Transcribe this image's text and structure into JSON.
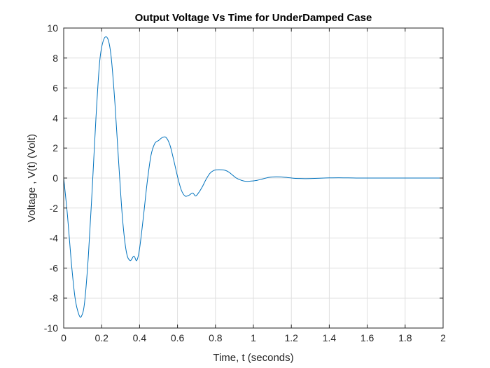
{
  "chart_data": {
    "type": "line",
    "title": "Output Voltage Vs Time for UnderDamped Case",
    "xlabel": "Time, t (seconds)",
    "ylabel": "Voltage , V(t) (Volt)",
    "xlim": [
      0,
      2
    ],
    "ylim": [
      -10,
      10
    ],
    "xticks": [
      0,
      0.2,
      0.4,
      0.6,
      0.8,
      1,
      1.2,
      1.4,
      1.6,
      1.8,
      2
    ],
    "xtick_labels": [
      "0",
      "0.2",
      "0.4",
      "0.6",
      "0.8",
      "1",
      "1.2",
      "1.4",
      "1.6",
      "1.8",
      "2"
    ],
    "yticks": [
      -10,
      -8,
      -6,
      -4,
      -2,
      0,
      2,
      4,
      6,
      8,
      10
    ],
    "ytick_labels": [
      "-10",
      "-8",
      "-6",
      "-4",
      "-2",
      "0",
      "2",
      "4",
      "6",
      "8",
      "10"
    ],
    "grid": true,
    "color": "#0072BD",
    "series": [
      {
        "x": [
          0,
          0.02,
          0.04,
          0.06,
          0.08,
          0.094,
          0.11,
          0.13,
          0.15,
          0.17,
          0.19,
          0.21,
          0.232,
          0.25,
          0.27,
          0.29,
          0.31,
          0.33,
          0.35,
          0.37,
          0.385,
          0.4,
          0.42,
          0.44,
          0.46,
          0.48,
          0.5,
          0.52,
          0.54,
          0.56,
          0.58,
          0.6,
          0.62,
          0.64,
          0.66,
          0.68,
          0.695,
          0.71,
          0.73,
          0.75,
          0.77,
          0.79,
          0.81,
          0.83,
          0.85,
          0.87,
          0.89,
          0.91,
          0.93,
          0.95,
          0.97,
          0.99,
          1.005,
          1.02,
          1.04,
          1.06,
          1.08,
          1.1,
          1.12,
          1.15,
          1.18,
          1.21,
          1.24,
          1.27,
          1.31,
          1.35,
          1.4,
          1.45,
          1.5,
          1.55,
          1.6,
          1.7,
          1.8,
          1.9,
          2.0
        ],
        "y": [
          0,
          -2.5,
          -5.6,
          -8.0,
          -9.1,
          -9.2,
          -8.3,
          -5.2,
          -0.8,
          4.0,
          7.8,
          9.2,
          9.3,
          8.1,
          5.0,
          1.0,
          -2.7,
          -4.9,
          -5.5,
          -5.2,
          -5.5,
          -4.7,
          -2.6,
          -0.3,
          1.5,
          2.3,
          2.5,
          2.7,
          2.7,
          2.2,
          1.2,
          0.1,
          -0.8,
          -1.2,
          -1.15,
          -1.0,
          -1.2,
          -1.0,
          -0.6,
          -0.1,
          0.3,
          0.5,
          0.55,
          0.55,
          0.52,
          0.4,
          0.2,
          0.0,
          -0.12,
          -0.2,
          -0.22,
          -0.2,
          -0.18,
          -0.15,
          -0.09,
          -0.02,
          0.04,
          0.07,
          0.08,
          0.07,
          0.03,
          -0.01,
          -0.03,
          -0.04,
          -0.03,
          -0.01,
          0.01,
          0.02,
          0.01,
          0.0,
          0.0,
          0.0,
          0.0,
          0.0,
          0.0
        ]
      }
    ]
  }
}
